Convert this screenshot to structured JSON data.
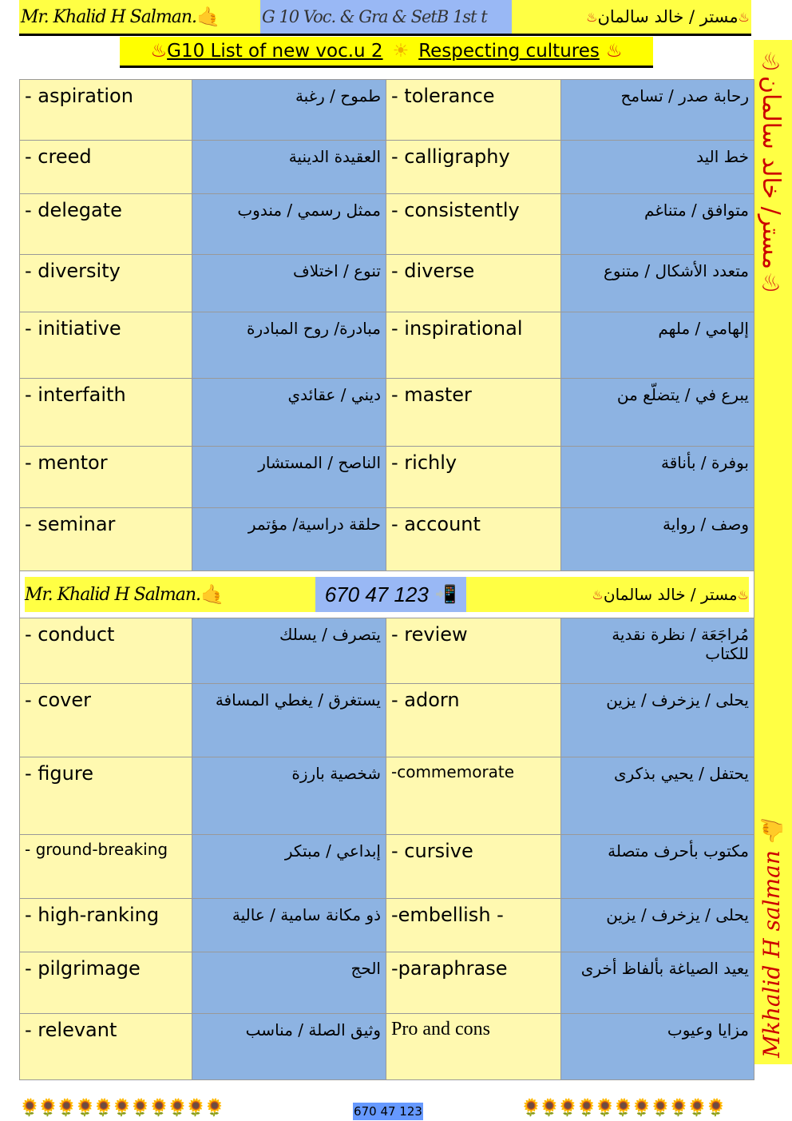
{
  "header": {
    "signature": "Mr. Khalid H Salman.",
    "course": "G 10 Voc. & Gra & SetB  1st t",
    "arabic_name": "مستر / خالد سالمان",
    "hand_icon": "call-me-hand",
    "flame_icon": "hot-springs"
  },
  "title": {
    "part1": "G10 List of new voc.u 2",
    "part2": "Respecting cultures",
    "sun_icon": "sun"
  },
  "sidebar": {
    "arabic_name": "مستر/ خالد سالمان",
    "signature": "Mkhalid H salman"
  },
  "table1": [
    {
      "en1": "- aspiration",
      "ar1": "طموح / رغبة",
      "en2": "- tolerance",
      "ar2": "رحابة صدر / تسامح"
    },
    {
      "en1": "- creed",
      "ar1": "العقيدة  الدينية",
      "en2": "- calligraphy",
      "ar2": "خط اليد"
    },
    {
      "en1": "- delegate",
      "ar1": "ممثل رسمي / مندوب",
      "en2": "- consistently",
      "ar2": "متوافق / متناغم"
    },
    {
      "en1": "- diversity",
      "ar1": "تنوع / اختلاف",
      "en2": "- diverse",
      "ar2": "متعدد الأشكال  / متنوع"
    },
    {
      "en1": "- initiative",
      "ar1": "مبادرة/ روح المبادرة",
      "en2": "- inspirational",
      "ar2": "إلهامي  / ملهم"
    },
    {
      "en1": "- interfaith",
      "ar1": "ديني / عقائدي",
      "en2": "- master",
      "ar2": "يبرع في  / يتضلّع من"
    },
    {
      "en1": "- mentor",
      "ar1": "الناصح  /  المستشار",
      "en2": "- richly",
      "ar2": "بوفرة / بأناقة"
    },
    {
      "en1": "- seminar",
      "ar1": "حلقة دراسية/ مؤتمر",
      "en2": "- account",
      "ar2": "وصف  /  رواية"
    }
  ],
  "banner": {
    "signature": "Mr. Khalid H Salman.",
    "phone": "670 47 123",
    "phone_icon": "mobile-phone-arrow",
    "arabic_name": "مستر / خالد سالمان"
  },
  "table2": [
    {
      "en1": "- conduct",
      "ar1": "يتصرف / يسلك",
      "en2": "- review",
      "ar2": "مُراجَعَة / نظرة نقدية للكتاب"
    },
    {
      "en1": "- cover",
      "ar1": "يستغرق / يغطي المسافة",
      "en2": "- adorn",
      "ar2": "يحلى / يزخرف / يزين"
    },
    {
      "en1": "- figure",
      "ar1": "شخصية بارزة",
      "en2": "-commemorate",
      "ar2": "يحتفل / يحيي بذكرى"
    },
    {
      "en1": "- ground-breaking",
      "ar1": "إبداعي / مبتكر",
      "en2": "- cursive",
      "ar2": "مكتوب بأحرف متصلة"
    },
    {
      "en1": "- high-ranking",
      "ar1": "ذو مكانة سامية / عالية",
      "en2": "-embellish -",
      "ar2": "يحلى / يزخرف / يزين"
    },
    {
      "en1": "- pilgrimage",
      "ar1": "الحج",
      "en2": "-paraphrase",
      "ar2": "يعيد  الصياغة بألفاظ أخرى"
    },
    {
      "en1": "- relevant",
      "ar1": "وثيق الصلة / مناسب",
      "en2": "Pro and cons",
      "ar2": "مزايا وعيوب"
    }
  ],
  "footer": {
    "phone": "670 47 123",
    "flowers_left": "🌻🌻🌻🌻🌻🌻🌻🌻🌻🌻🌻",
    "flowers_right": "🌻🌻🌻🌻🌻🌻🌻🌻🌻🌻🌻"
  },
  "colors": {
    "yellow": "#ffff44",
    "light_yellow": "#fff9b0",
    "blue": "#8db3e2",
    "phone_blue": "#99b8f5",
    "flame_red": "#d01010"
  }
}
